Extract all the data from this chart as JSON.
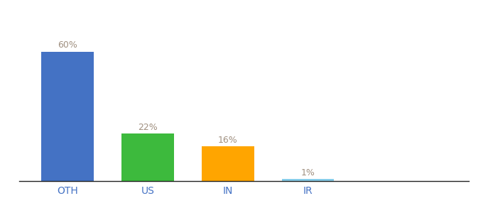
{
  "categories": [
    "OTH",
    "US",
    "IN",
    "IR"
  ],
  "values": [
    60,
    22,
    16,
    1
  ],
  "bar_colors": [
    "#4472c4",
    "#3dba3d",
    "#ffa500",
    "#87ceeb"
  ],
  "label_color": "#a09080",
  "xlabel_color": "#4472c4",
  "value_labels": [
    "60%",
    "22%",
    "16%",
    "1%"
  ],
  "background_color": "#ffffff",
  "ylim": [
    0,
    72
  ],
  "bar_width": 0.65,
  "label_fontsize": 9,
  "xtick_fontsize": 10
}
